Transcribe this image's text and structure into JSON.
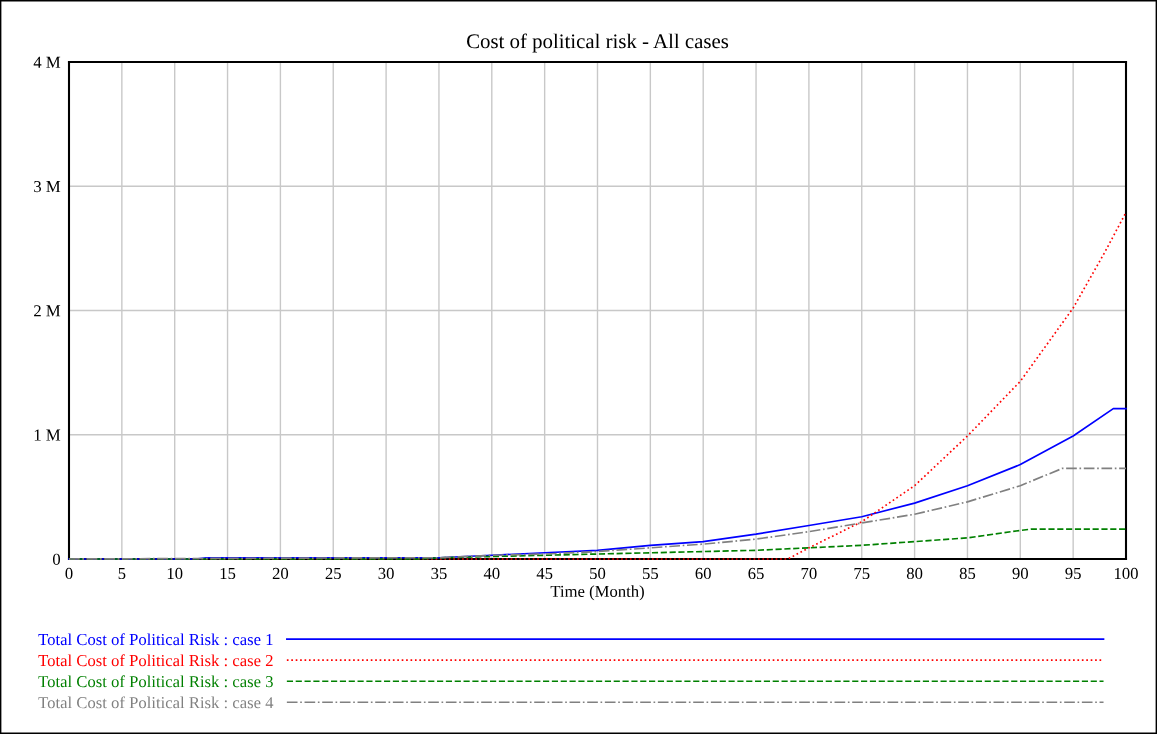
{
  "chart_data": {
    "type": "line",
    "title": "Cost of political risk - All cases",
    "xlabel": "Time (Month)",
    "x": [
      0,
      12,
      13,
      20,
      30,
      35,
      40,
      45,
      50,
      55,
      60,
      65,
      70,
      75,
      80,
      85,
      90,
      95,
      98.8,
      100
    ],
    "series": [
      {
        "name": "Total Cost of Political Risk : case 1",
        "color": "#0000ff",
        "line_style": "solid",
        "values": [
          0,
          0,
          0.01,
          0.01,
          0.01,
          0.01,
          0.03,
          0.05,
          0.07,
          0.11,
          0.14,
          0.2,
          0.27,
          0.34,
          0.45,
          0.59,
          0.76,
          0.99,
          1.21,
          1.21
        ]
      },
      {
        "name": "Total Cost of Political Risk : case 2",
        "color": "#ff0000",
        "line_style": "dotted",
        "x": [
          0,
          68,
          70,
          75,
          80,
          85,
          90,
          95,
          98,
          100
        ],
        "values": [
          0,
          0,
          0.09,
          0.3,
          0.59,
          0.99,
          1.43,
          2.02,
          2.47,
          2.79
        ]
      },
      {
        "name": "Total Cost of Political Risk : case 3",
        "color": "#008000",
        "line_style": "dashed",
        "x": [
          0,
          33,
          35,
          40,
          45,
          50,
          55,
          60,
          65,
          70,
          75,
          80,
          85,
          90,
          91,
          100
        ],
        "values": [
          0,
          0,
          0.01,
          0.02,
          0.03,
          0.04,
          0.05,
          0.06,
          0.07,
          0.09,
          0.11,
          0.14,
          0.17,
          0.23,
          0.24,
          0.24
        ]
      },
      {
        "name": "Total Cost of Political Risk : case 4",
        "color": "#808080",
        "line_style": "dashdot",
        "x": [
          0,
          30,
          35,
          40,
          45,
          50,
          55,
          60,
          65,
          70,
          75,
          80,
          85,
          90,
          94,
          100
        ],
        "values": [
          0,
          0.01,
          0.01,
          0.03,
          0.04,
          0.06,
          0.09,
          0.12,
          0.16,
          0.22,
          0.29,
          0.36,
          0.46,
          0.59,
          0.73,
          0.73
        ]
      }
    ],
    "xlim": [
      0,
      100
    ],
    "xticks": [
      0,
      5,
      10,
      15,
      20,
      25,
      30,
      35,
      40,
      45,
      50,
      55,
      60,
      65,
      70,
      75,
      80,
      85,
      90,
      95,
      100
    ],
    "ylim": [
      0,
      4
    ],
    "yticks": [
      0,
      {
        "value": 1,
        "label": "1 M"
      },
      {
        "value": 2,
        "label": "2 M"
      },
      {
        "value": 3,
        "label": "3 M"
      },
      {
        "value": 4,
        "label": "4 M"
      }
    ],
    "grid": true,
    "legend": "bottom",
    "marker": "none"
  }
}
